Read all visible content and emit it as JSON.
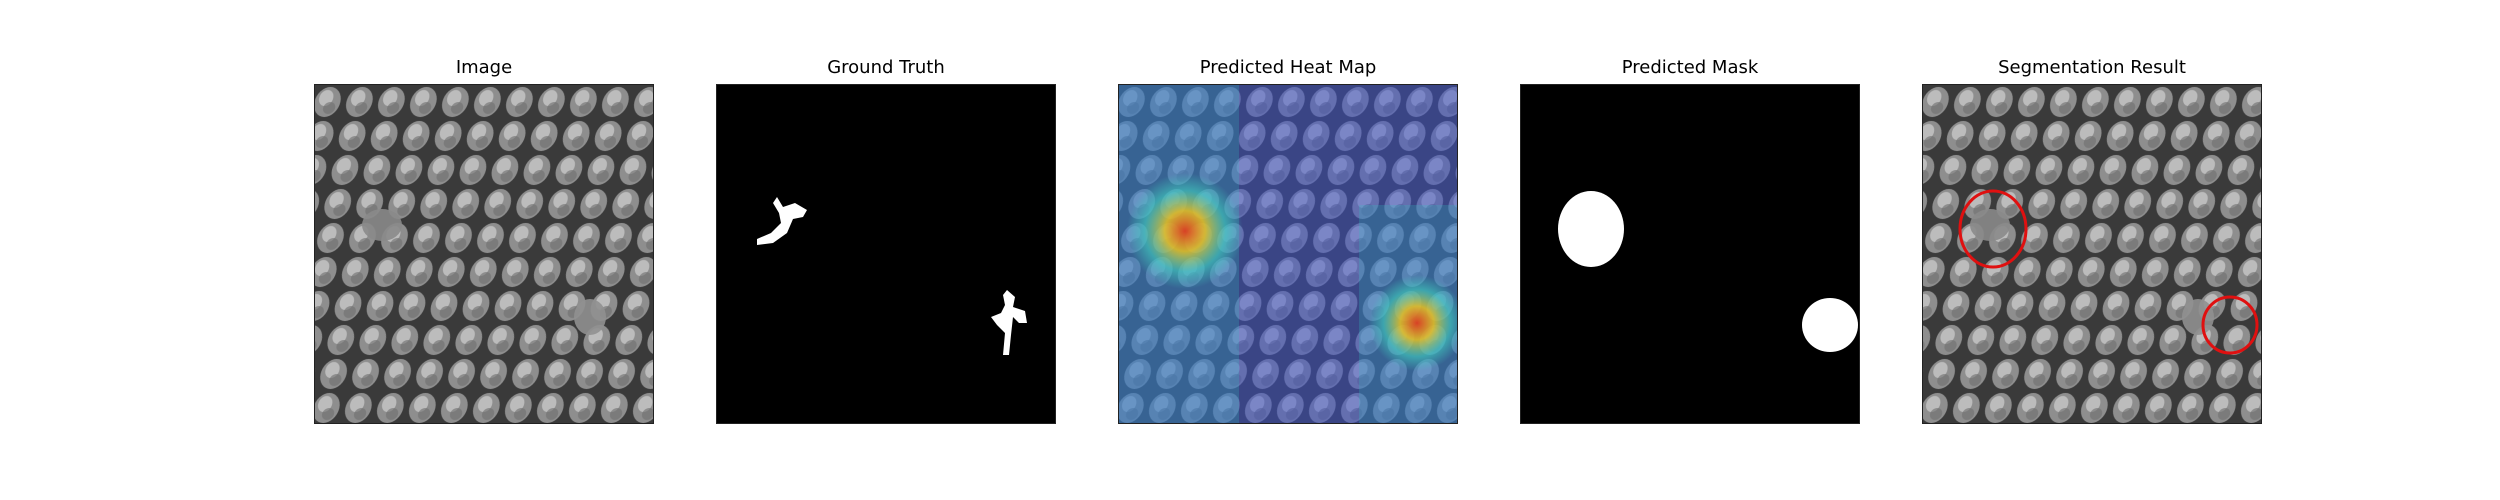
{
  "figure": {
    "panels": [
      {
        "title": "Image",
        "content": "textured-surface"
      },
      {
        "title": "Ground Truth",
        "content": "binary-mask"
      },
      {
        "title": "Predicted Heat Map",
        "content": "heatmap-overlay"
      },
      {
        "title": "Predicted Mask",
        "content": "binary-mask"
      },
      {
        "title": "Segmentation Result",
        "content": "contour-overlay"
      }
    ]
  },
  "colors": {
    "background": "#ffffff",
    "mask_background": "#000000",
    "mask_foreground": "#ffffff",
    "contour": "#e01010",
    "heat_low": "#3a4fd0",
    "heat_high": "#e04020"
  }
}
